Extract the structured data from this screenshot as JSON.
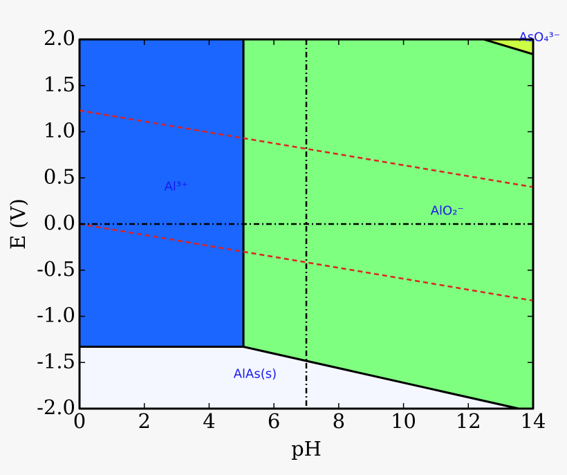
{
  "chart_data": {
    "type": "pourbaix",
    "x_label": "pH",
    "y_label": "E (V)",
    "xlim": [
      0,
      14
    ],
    "ylim": [
      -2,
      2
    ],
    "xticks": [
      0,
      2,
      4,
      6,
      8,
      10,
      12,
      14
    ],
    "yticks": [
      {
        "value": 2,
        "label": "2.0"
      },
      {
        "value": 1.5,
        "label": "1.5"
      },
      {
        "value": 1,
        "label": "1.0"
      },
      {
        "value": 0.5,
        "label": "0.5"
      },
      {
        "value": 0,
        "label": "0.0"
      },
      {
        "value": -0.5,
        "label": "-0.5"
      },
      {
        "value": -1,
        "label": "-1.0"
      },
      {
        "value": -1.5,
        "label": "-1.5"
      },
      {
        "value": -2,
        "label": "-2.0"
      }
    ],
    "regions": [
      {
        "name": "Al³⁺",
        "color": "#1a66ff",
        "x": [
          0,
          5.06,
          5.06,
          0
        ],
        "y": [
          2,
          2,
          -1.33,
          -1.33
        ],
        "label_at": [
          2.98,
          0.4
        ]
      },
      {
        "name": "AlO₂⁻",
        "color": "#7fff7f",
        "x": [
          5.06,
          12.48,
          14,
          14,
          13.55,
          5.06
        ],
        "y": [
          2,
          2,
          1.84,
          -2,
          -2,
          -1.33
        ],
        "label_at": [
          11.35,
          0.14
        ]
      },
      {
        "name": "AsO₄³⁻",
        "color": "#ccff44",
        "x": [
          12.48,
          14,
          14
        ],
        "y": [
          2,
          2,
          1.84
        ],
        "label_at": [
          14.2,
          2.02
        ]
      },
      {
        "name": "AlAs(s)",
        "color": "#f4f7ff",
        "x": [
          0,
          5.06,
          13.55,
          0
        ],
        "y": [
          -1.33,
          -1.33,
          -2,
          -2
        ],
        "label_at": [
          5.42,
          -1.63
        ]
      }
    ],
    "water_lines": [
      {
        "x": [
          0,
          14
        ],
        "y": [
          1.23,
          0.4
        ],
        "color": "#dd2222"
      },
      {
        "x": [
          0,
          14
        ],
        "y": [
          0,
          -0.83
        ],
        "color": "#dd2222"
      }
    ],
    "reference_lines": {
      "ph": 7,
      "e": 0
    }
  }
}
